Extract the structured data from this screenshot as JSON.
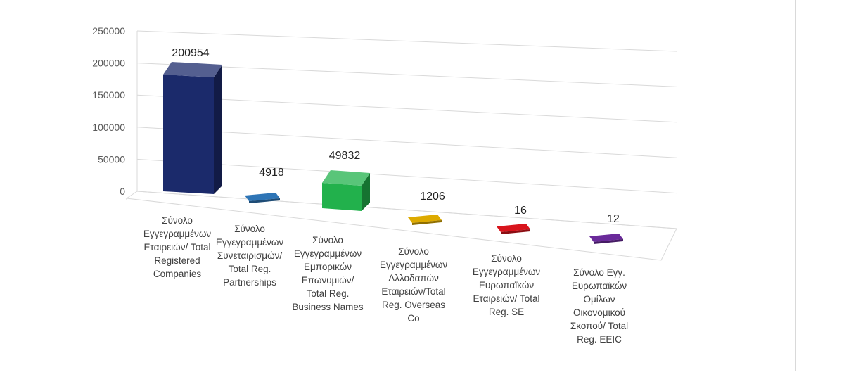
{
  "chart_data": {
    "type": "bar",
    "title": "",
    "xlabel": "",
    "ylabel": "",
    "ylim": [
      0,
      250000
    ],
    "yticks": [
      "0",
      "50000",
      "100000",
      "150000",
      "200000",
      "250000"
    ],
    "grid": true,
    "legend": "none",
    "style": "3d-column",
    "categories": [
      [
        "Σύνολο",
        "Εγγεγραμμένων",
        "Εταιρειών/ Total",
        "Registered",
        "Companies"
      ],
      [
        "Σύνολο",
        "Εγγεγραμμένων",
        "Συνεταιρισμών/",
        "Total Reg.",
        "Partnerships"
      ],
      [
        "Σύνολο",
        "Εγγεγραμμένων",
        "Εμπορικών",
        "Επωνυμιών/",
        "Total Reg.",
        "Business Names"
      ],
      [
        "Σύνολο",
        "Εγγεγραμμένων",
        "Αλλοδαπών",
        "Εταιρειών/Total",
        "Reg. Overseas",
        "Co"
      ],
      [
        "Σύνολο",
        "Εγγεγραμμένων",
        "Ευρωπαϊκών",
        "Εταιρειών/ Total",
        "Reg. SE"
      ],
      [
        "Σύνολο Εγγ.",
        "Ευρωπαϊκών",
        "Ομίλων",
        "Οικονομικού",
        "Σκοπού/ Total",
        "Reg. EEIC"
      ]
    ],
    "values": [
      200954,
      4918,
      49832,
      1206,
      16,
      12
    ],
    "data_labels": [
      "200954",
      "4918",
      "49832",
      "1206",
      "16",
      "12"
    ],
    "colors": [
      "#1b2a6b",
      "#2e75b6",
      "#22b14c",
      "#ddaa00",
      "#d8141c",
      "#6a2a9a"
    ]
  }
}
